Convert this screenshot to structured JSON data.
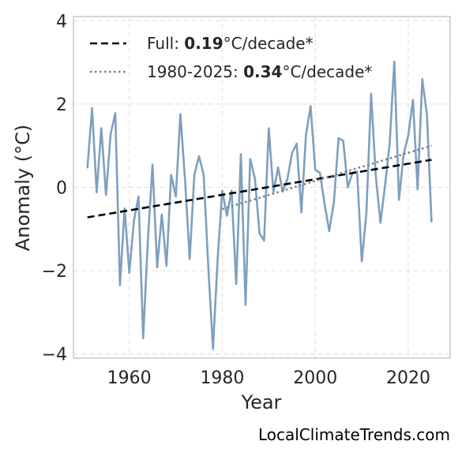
{
  "chart_data": {
    "type": "line",
    "xlabel": "Year",
    "ylabel": "Anomaly (°C)",
    "xlim": [
      1948,
      2029
    ],
    "ylim": [
      -4.1,
      4.1
    ],
    "xticks": [
      1960,
      1980,
      2000,
      2020
    ],
    "yticks": [
      -4,
      -2,
      0,
      2,
      4
    ],
    "ytick_labels": [
      "−4",
      "−2",
      "0",
      "2",
      "4"
    ],
    "grid": true,
    "legend_position": "top-left",
    "series": [
      {
        "kind": "observed",
        "color": "#7f9fbf",
        "x": [
          1951,
          1952,
          1953,
          1954,
          1955,
          1956,
          1957,
          1958,
          1959,
          1960,
          1961,
          1962,
          1963,
          1964,
          1965,
          1966,
          1967,
          1968,
          1969,
          1970,
          1971,
          1972,
          1973,
          1974,
          1975,
          1976,
          1977,
          1978,
          1979,
          1980,
          1981,
          1982,
          1983,
          1984,
          1985,
          1986,
          1987,
          1988,
          1989,
          1990,
          1991,
          1992,
          1993,
          1994,
          1995,
          1996,
          1997,
          1998,
          1999,
          2000,
          2001,
          2002,
          2003,
          2004,
          2005,
          2006,
          2007,
          2008,
          2009,
          2010,
          2011,
          2012,
          2013,
          2014,
          2015,
          2016,
          2017,
          2018,
          2019,
          2020,
          2021,
          2022,
          2023,
          2024,
          2025
        ],
        "values": [
          0.48,
          1.9,
          -0.12,
          1.42,
          -0.18,
          1.28,
          1.78,
          -2.35,
          -0.5,
          -2.05,
          -0.8,
          -0.22,
          -3.62,
          -1.28,
          0.55,
          -1.92,
          -0.65,
          -1.88,
          0.3,
          -0.22,
          1.76,
          0.18,
          -1.72,
          0.3,
          0.75,
          0.3,
          -1.92,
          -3.88,
          -1.72,
          -0.08,
          -0.68,
          -0.08,
          -2.32,
          0.8,
          -2.82,
          0.68,
          0.22,
          -1.1,
          -1.28,
          1.42,
          -0.12,
          0.48,
          -0.1,
          0.2,
          0.82,
          1.05,
          -0.6,
          1.25,
          1.95,
          0.42,
          0.35,
          -0.4,
          -1.05,
          -0.35,
          1.18,
          1.12,
          0.0,
          0.35,
          0.38,
          -1.78,
          -0.6,
          2.25,
          0.28,
          -0.85,
          0.05,
          1.05,
          3.02,
          -0.3,
          0.8,
          1.25,
          2.1,
          -0.05,
          2.6,
          1.75,
          -0.82
        ]
      },
      {
        "kind": "full-trend",
        "color": "#000000",
        "dash": "dashed",
        "x": [
          1951,
          2025
        ],
        "values": [
          -0.72,
          0.66
        ]
      },
      {
        "kind": "recent-trend",
        "color": "#808080",
        "dash": "dotted",
        "x": [
          1980,
          2025
        ],
        "values": [
          -0.52,
          1.0
        ]
      }
    ],
    "legend": [
      {
        "prefix": "Full: ",
        "value": "0.19",
        "suffix": "°C/decade*"
      },
      {
        "prefix": "1980-2025: ",
        "value": "0.34",
        "suffix": "°C/decade*"
      }
    ]
  },
  "credit": "LocalClimateTrends.com"
}
